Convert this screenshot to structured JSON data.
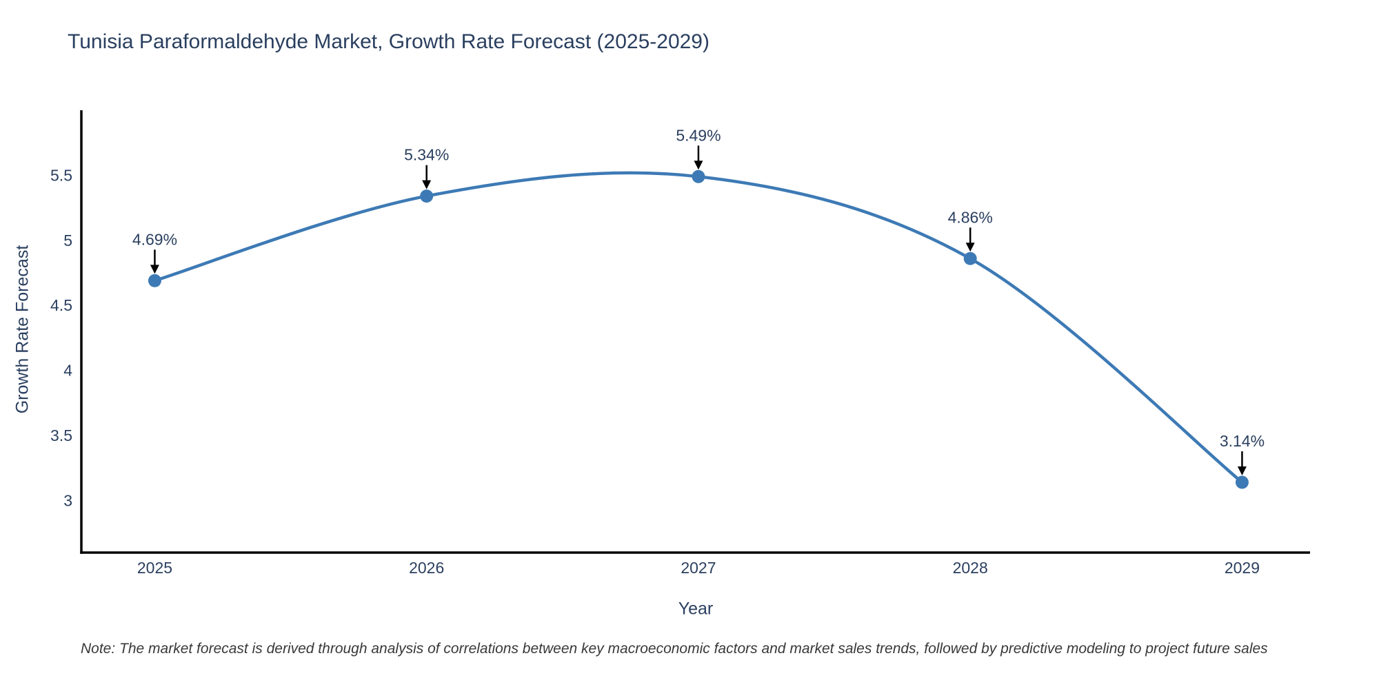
{
  "title": "Tunisia Paraformaldehyde Market, Growth Rate Forecast (2025-2029)",
  "note": "Note: The market forecast is derived through analysis of correlations between key macroeconomic factors and market sales trends, followed by predictive modeling to project future sales",
  "chart_data": {
    "type": "line",
    "title": "Tunisia Paraformaldehyde Market, Growth Rate Forecast (2025-2029)",
    "x": [
      2025,
      2026,
      2027,
      2028,
      2029
    ],
    "series": [
      {
        "name": "Growth Rate Forecast",
        "values": [
          4.69,
          5.34,
          5.49,
          4.86,
          3.14
        ]
      }
    ],
    "point_labels": [
      "4.69%",
      "5.34%",
      "5.49%",
      "4.86%",
      "3.14%"
    ],
    "xlabel": "Year",
    "ylabel": "Growth Rate Forecast",
    "yticks": [
      3,
      3.5,
      4,
      4.5,
      5,
      5.5
    ],
    "ylim": [
      2.6,
      6.0
    ],
    "xlim": [
      2024.73,
      2029.25
    ],
    "grid": false,
    "legend": "none",
    "line_shape": "spline",
    "marker": "circle",
    "annotation_arrows": true,
    "colors": {
      "line": "#3d7ab5",
      "marker": "#3d7ab5",
      "axis": "#000000",
      "tick_text": "#2a3f5f",
      "annotation_text": "#2a3f5f",
      "annotation_arrow": "#000000",
      "background": "#ffffff"
    }
  }
}
